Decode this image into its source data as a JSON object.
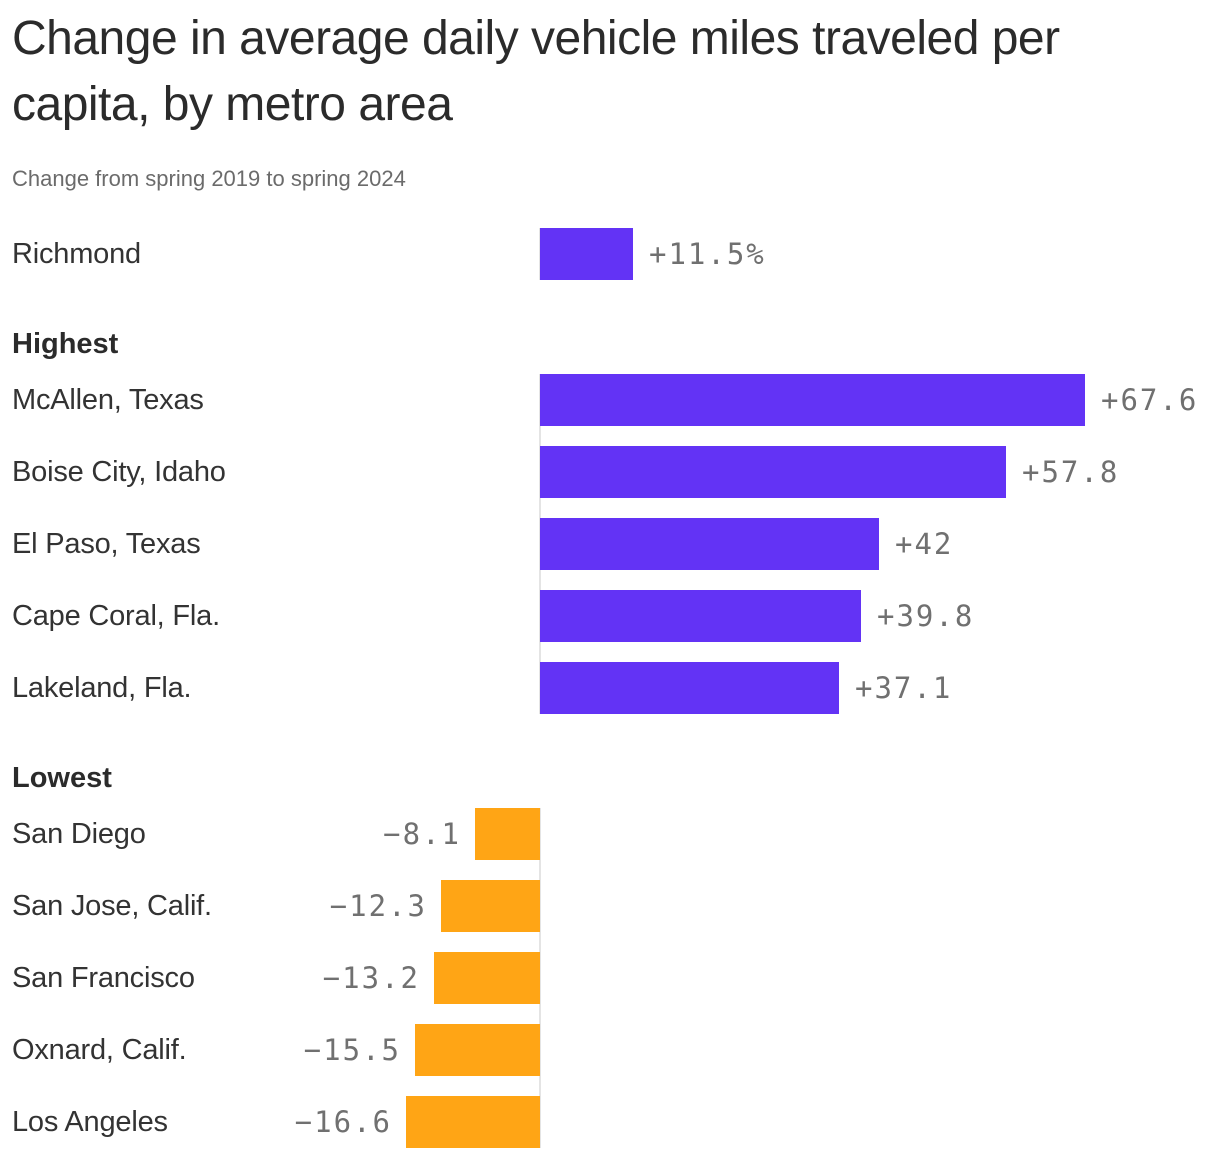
{
  "chart": {
    "title": "Change in average daily vehicle miles traveled per capita, by metro area",
    "subtitle": "Change from spring 2019 to spring 2024"
  },
  "chart_data": {
    "type": "bar",
    "orientation": "horizontal",
    "unit": "percent change",
    "title": "Change in average daily vehicle miles traveled per capita, by metro area",
    "subtitle": "Change from spring 2019 to spring 2024",
    "positive_color": "#6333F5",
    "negative_color": "#FFA515",
    "value_label_color": "#707070",
    "axis_line_color": "#e4e4e4",
    "baseline": 0,
    "sections": [
      {
        "header": "",
        "rows": [
          {
            "label": "Richmond",
            "value": 11.5,
            "value_label": "+11.5%"
          }
        ]
      },
      {
        "header": "Highest",
        "rows": [
          {
            "label": "McAllen, Texas",
            "value": 67.6,
            "value_label": "+67.6"
          },
          {
            "label": "Boise City, Idaho",
            "value": 57.8,
            "value_label": "+57.8"
          },
          {
            "label": "El Paso, Texas",
            "value": 42,
            "value_label": "+42"
          },
          {
            "label": "Cape Coral, Fla.",
            "value": 39.8,
            "value_label": "+39.8"
          },
          {
            "label": "Lakeland, Fla.",
            "value": 37.1,
            "value_label": "+37.1"
          }
        ]
      },
      {
        "header": "Lowest",
        "rows": [
          {
            "label": "San Diego",
            "value": -8.1,
            "value_label": "−8.1"
          },
          {
            "label": "San Jose, Calif.",
            "value": -12.3,
            "value_label": "−12.3"
          },
          {
            "label": "San Francisco",
            "value": -13.2,
            "value_label": "−13.2"
          },
          {
            "label": "Oxnard, Calif.",
            "value": -15.5,
            "value_label": "−15.5"
          },
          {
            "label": "Los Angeles",
            "value": -16.6,
            "value_label": "−16.6"
          }
        ]
      }
    ]
  }
}
